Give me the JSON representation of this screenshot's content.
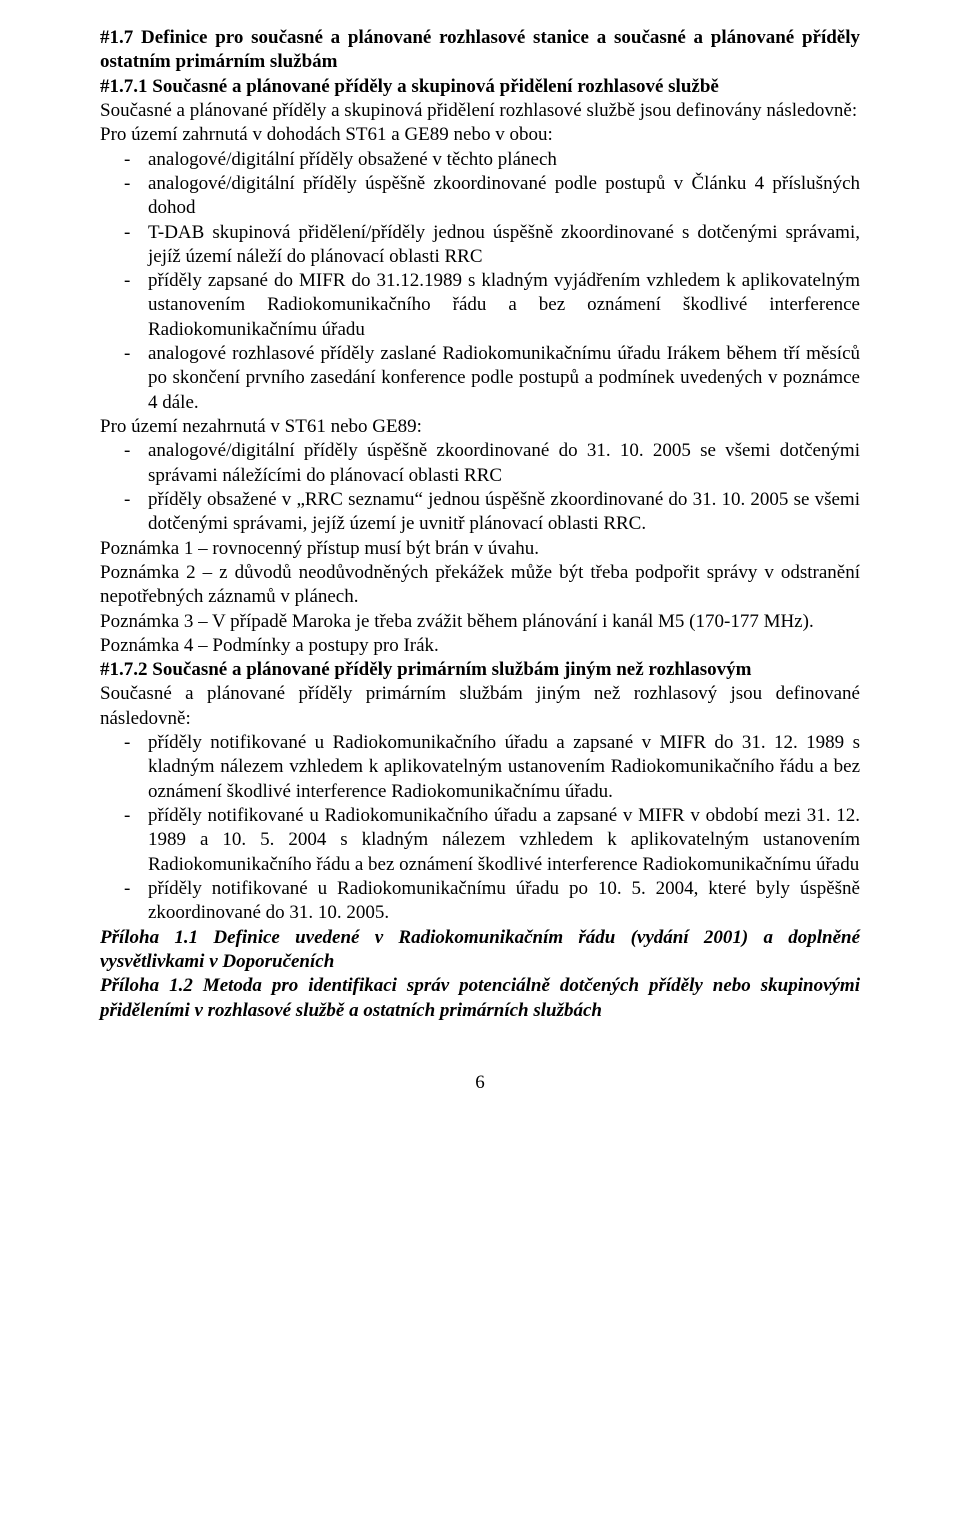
{
  "pageNumber": "6",
  "sec17": {
    "heading": "#1.7 Definice pro současné a plánované rozhlasové stanice a současné a plánované příděly ostatním primárním službám",
    "sub171_heading": "#1.7.1 Současné a plánované příděly a skupinová přidělení rozhlasové službě",
    "intro": "Současné a plánované příděly a skupinová přidělení rozhlasové službě jsou definovány následovně:",
    "zone1": "Pro území zahrnutá v dohodách ST61 a GE89 nebo v obou:",
    "zone1_items": [
      "analogové/digitální příděly obsažené v těchto plánech",
      "analogové/digitální příděly úspěšně zkoordinované podle postupů v Článku 4 příslušných dohod",
      "T-DAB skupinová přidělení/příděly jednou úspěšně zkoordinované s dotčenými správami, jejíž území náleží do plánovací oblasti RRC",
      "příděly zapsané do MIFR do 31.12.1989 s kladným vyjádřením vzhledem k aplikovatelným ustanovením Radiokomunikačního řádu a bez oznámení škodlivé interference Radiokomunikačnímu úřadu",
      "analogové rozhlasové příděly zaslané Radiokomunikačnímu úřadu Irákem během tří měsíců po skončení prvního zasedání konference podle postupů a podmínek uvedených v poznámce 4 dále."
    ],
    "zone2": "Pro území nezahrnutá v ST61 nebo GE89:",
    "zone2_items": [
      "analogové/digitální příděly úspěšně zkoordinované do 31. 10. 2005 se všemi dotčenými správami náležícími do plánovací oblasti RRC",
      "příděly obsažené v „RRC seznamu“ jednou úspěšně zkoordinované do 31. 10. 2005 se všemi dotčenými správami, jejíž území je uvnitř plánovací oblasti RRC."
    ],
    "note1": "Poznámka 1 – rovnocenný přístup musí být brán v úvahu.",
    "note2": "Poznámka 2 – z důvodů neodůvodněných překážek může být třeba podpořit správy v odstranění nepotřebných záznamů v plánech.",
    "note3": "Poznámka 3 – V případě Maroka je třeba zvážit během plánování i kanál M5 (170-177 MHz).",
    "note4": "Poznámka 4 – Podmínky a postupy pro Irák.",
    "sub172_heading": "#1.7.2 Současné a plánované příděly primárním službám jiným než rozhlasovým",
    "sub172_intro": "Současné a plánované příděly primárním službám jiným než rozhlasový jsou definované následovně:",
    "sub172_items": [
      "příděly notifikované u Radiokomunikačního úřadu a zapsané v MIFR do 31. 12. 1989 s kladným nálezem vzhledem k aplikovatelným ustanovením Radiokomunikačního řádu a bez oznámení škodlivé interference Radiokomunikačnímu úřadu.",
      "příděly notifikované u Radiokomunikačního úřadu a zapsané v MIFR v období mezi 31. 12. 1989 a 10. 5. 2004 s kladným nálezem vzhledem k aplikovatelným ustanovením Radiokomunikačního řádu a bez oznámení škodlivé interference Radiokomunikačnímu úřadu",
      "příděly notifikované u Radiokomunikačnímu úřadu po 10. 5. 2004, které byly úspěšně zkoordinované do 31. 10. 2005."
    ],
    "annex11": "Příloha 1.1 Definice uvedené v Radiokomunikačním řádu (vydání 2001) a doplněné vysvětlivkami v Doporučeních",
    "annex12": "Příloha 1.2 Metoda pro identifikaci správ potenciálně dotčených příděly nebo skupinovými přiděleními v rozhlasové službě a ostatních primárních službách"
  }
}
